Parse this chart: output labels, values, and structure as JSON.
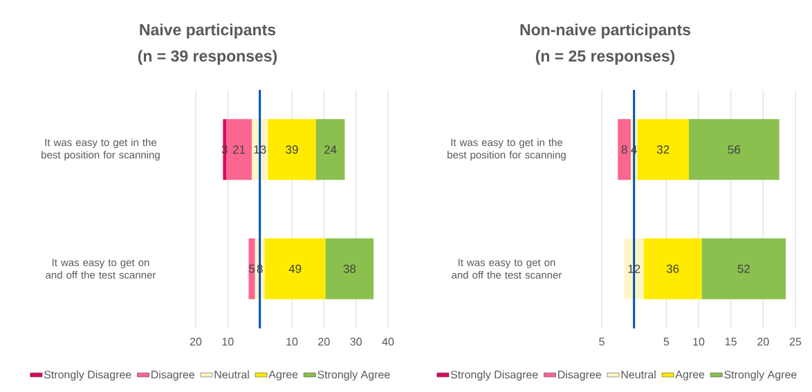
{
  "chart_data": [
    {
      "type": "bar",
      "orientation": "horizontal",
      "title": "Naive participants",
      "subtitle": "(n = 39 responses)",
      "categories": [
        "It was easy to get in the best position for scanning",
        "It was easy to get on and off the test scanner"
      ],
      "series": [
        {
          "name": "Strongly Disagree",
          "color": "#d80b5c",
          "values": [
            1,
            null
          ],
          "base": [
            -11.5,
            null
          ]
        },
        {
          "name": "Disagree",
          "color": "#fb6690",
          "values": [
            8,
            2
          ],
          "base": [
            -10.5,
            -3.5
          ]
        },
        {
          "name": "Neutral",
          "color": "#fff5c6",
          "values": [
            5,
            3
          ],
          "base": [
            -2.5,
            -1.5
          ]
        },
        {
          "name": "Agree",
          "color": "#ffeb00",
          "values": [
            15,
            19
          ],
          "base": [
            2.5,
            1.5
          ]
        },
        {
          "name": "Strongly Agree",
          "color": "#8bc04f",
          "values": [
            9,
            15
          ],
          "base": [
            17.5,
            20.5
          ]
        }
      ],
      "annotations": [
        "3",
        "21",
        "13",
        "39",
        "24",
        "5",
        "8",
        "49",
        "38"
      ],
      "xlim": [
        -20,
        40
      ],
      "xticks": [
        {
          "value": -20,
          "label": "20"
        },
        {
          "value": -10,
          "label": "10"
        },
        {
          "value": 0,
          "label": null
        },
        10,
        20,
        30,
        40
      ],
      "grid": "x",
      "legend": "bottom",
      "ref_lines": [
        {
          "axis": "x",
          "value": 0,
          "color": "#0050b8"
        }
      ]
    },
    {
      "type": "bar",
      "orientation": "horizontal",
      "title": "Non-naive participants",
      "subtitle": "(n = 25 responses)",
      "categories": [
        "It was easy to get in the best position for scanning",
        "It was easy to get on and off the test scanner"
      ],
      "series": [
        {
          "name": "Strongly Disagree",
          "color": "#d80b5c",
          "values": [
            null,
            null
          ],
          "base": [
            null,
            null
          ]
        },
        {
          "name": "Disagree",
          "color": "#fb6690",
          "values": [
            2,
            null
          ],
          "base": [
            -2.5,
            null
          ]
        },
        {
          "name": "Neutral",
          "color": "#fff5c6",
          "values": [
            1,
            3
          ],
          "base": [
            -0.5,
            -1.5
          ]
        },
        {
          "name": "Agree",
          "color": "#ffeb00",
          "values": [
            8,
            9
          ],
          "base": [
            0.5,
            1.5
          ]
        },
        {
          "name": "Strongly Agree",
          "color": "#8bc04f",
          "values": [
            14,
            13
          ],
          "base": [
            8.5,
            10.5
          ]
        }
      ],
      "annotations": [
        "8",
        "4",
        "32",
        "56",
        "12",
        "36",
        "52"
      ],
      "xlim": [
        -5,
        25
      ],
      "xticks": [
        {
          "value": -5,
          "label": "5"
        },
        {
          "value": 0,
          "label": null
        },
        5,
        10,
        15,
        20,
        25
      ],
      "grid": "x",
      "legend": "bottom",
      "ref_lines": [
        {
          "axis": "x",
          "value": 0,
          "color": "#0050b8"
        }
      ]
    }
  ]
}
